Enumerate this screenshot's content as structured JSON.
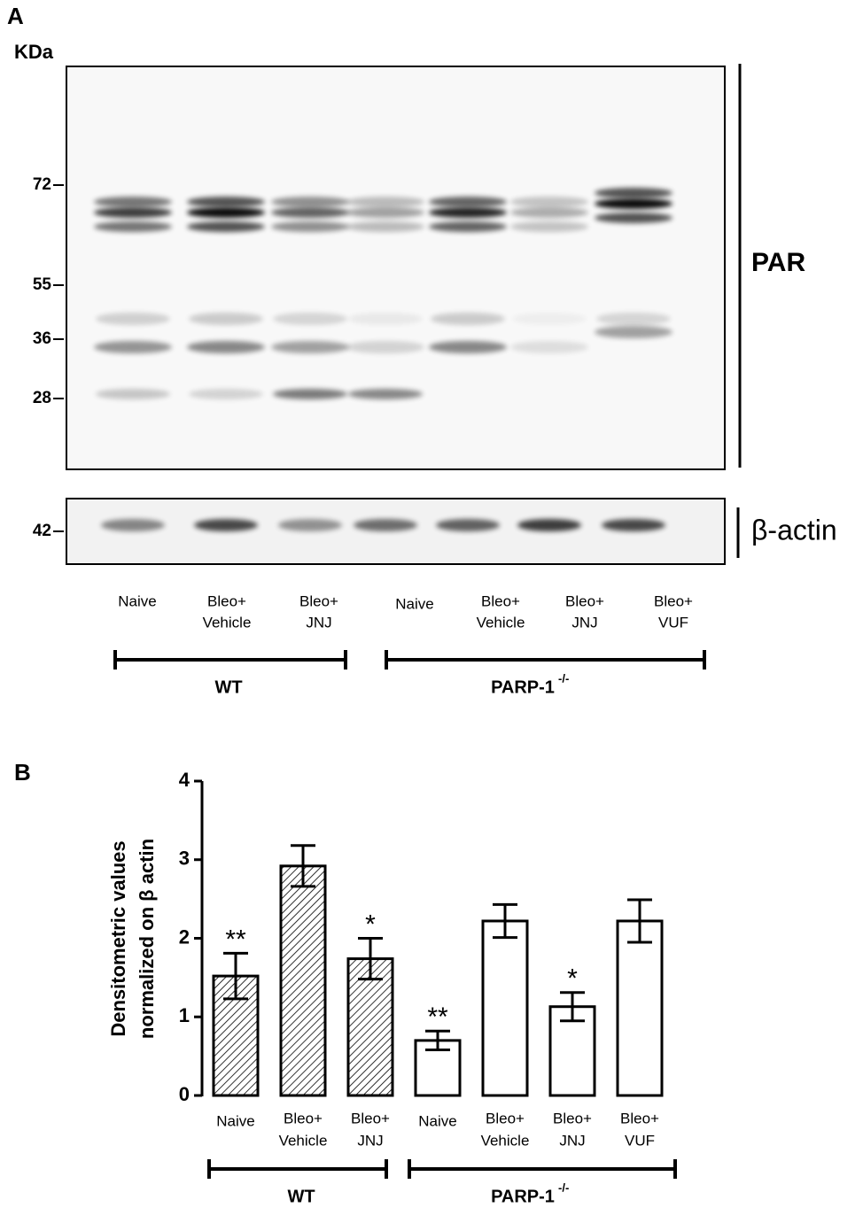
{
  "panel_a": {
    "letter": "A",
    "unit": "KDa",
    "markers": [
      "72",
      "55",
      "36",
      "28"
    ],
    "actin_marker": "42",
    "par_label": "PAR",
    "actin_label": "β-actin",
    "lanes": [
      [
        "Naive"
      ],
      [
        "Bleo+",
        "Vehicle"
      ],
      [
        "Bleo+",
        "JNJ"
      ],
      [
        "Naive"
      ],
      [
        "Bleo+",
        "Vehicle"
      ],
      [
        "Bleo+",
        "JNJ"
      ],
      [
        "Bleo+",
        "VUF"
      ]
    ],
    "groups": [
      {
        "label": "WT"
      },
      {
        "label": "PARP-1",
        "superscript": "-/-"
      }
    ]
  },
  "chart_data": {
    "type": "bar",
    "letter": "B",
    "ylabel": [
      "Densitometric values",
      "normalized on β actin"
    ],
    "categories": [
      [
        "Naive"
      ],
      [
        "Bleo+",
        "Vehicle"
      ],
      [
        "Bleo+",
        "JNJ"
      ],
      [
        "Naive"
      ],
      [
        "Bleo+",
        "Vehicle"
      ],
      [
        "Bleo+",
        "JNJ"
      ],
      [
        "Bleo+",
        "VUF"
      ]
    ],
    "values": [
      1.52,
      2.92,
      1.74,
      0.7,
      2.22,
      1.13,
      2.22
    ],
    "errors": [
      0.29,
      0.26,
      0.26,
      0.12,
      0.21,
      0.18,
      0.27
    ],
    "annotations": [
      "**",
      null,
      "*",
      "**",
      null,
      "*",
      null
    ],
    "hatched": [
      true,
      true,
      true,
      false,
      false,
      false,
      false
    ],
    "color": "#000000",
    "ylim": [
      0,
      4
    ],
    "yticks": [
      0,
      1,
      2,
      3,
      4
    ],
    "groups": [
      {
        "label": "WT"
      },
      {
        "label": "PARP-1",
        "superscript": "-/-"
      }
    ]
  }
}
